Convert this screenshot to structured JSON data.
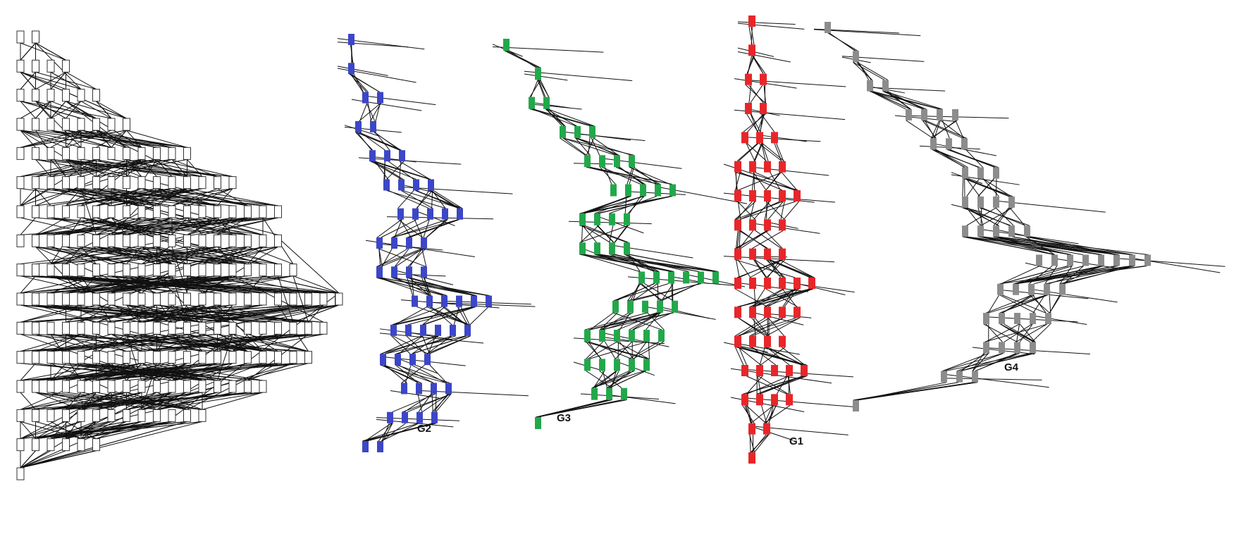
{
  "figure": {
    "background": "#ffffff",
    "edge_color": "#111111",
    "source_graph": {
      "node_fill": "#ffffff",
      "node_stroke": "#333333",
      "layer_sizes": [
        2,
        4,
        6,
        8,
        12,
        15,
        18,
        18,
        19,
        23,
        21,
        20,
        17,
        13,
        6,
        1
      ]
    },
    "subgraphs": [
      {
        "id": "g2",
        "label": "G2",
        "color": "#3c46c8",
        "layer_sizes": [
          1,
          1,
          2,
          2,
          3,
          4,
          5,
          4,
          4,
          6,
          6,
          4,
          4,
          4,
          2
        ]
      },
      {
        "id": "g3",
        "label": "G3",
        "color": "#22a84a",
        "layer_sizes": [
          1,
          1,
          2,
          3,
          4,
          5,
          4,
          4,
          6,
          5,
          6,
          5,
          3,
          1
        ]
      },
      {
        "id": "g1",
        "label": "G1",
        "color": "#e8262a",
        "layer_sizes": [
          1,
          1,
          2,
          2,
          3,
          4,
          5,
          4,
          4,
          6,
          5,
          4,
          5,
          4,
          2,
          1
        ]
      },
      {
        "id": "g4",
        "label": "G4",
        "color": "#8c8c8c",
        "layer_sizes": [
          1,
          1,
          2,
          4,
          3,
          3,
          4,
          5,
          8,
          5,
          5,
          4,
          3,
          1
        ]
      }
    ]
  }
}
